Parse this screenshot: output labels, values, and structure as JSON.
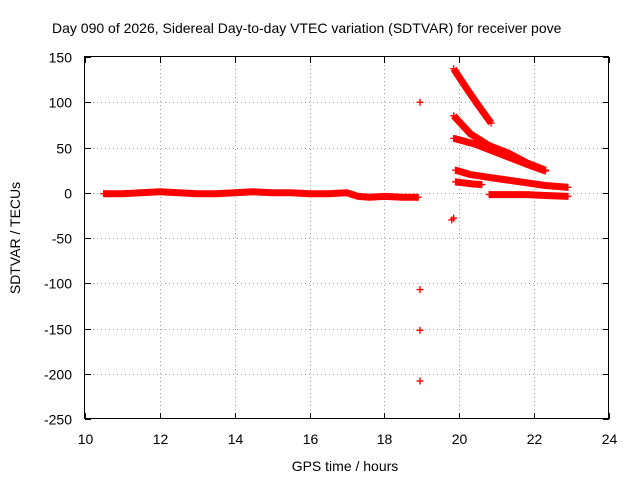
{
  "chart_data": {
    "type": "scatter",
    "title": "Day 090 of 2026, Sidereal Day-to-day VTEC variation (SDTVAR) for receiver pove",
    "xlabel": "GPS time / hours",
    "ylabel": "SDTVAR / TECUs",
    "xlim": [
      10,
      24
    ],
    "ylim": [
      -250,
      150
    ],
    "xticks": [
      10,
      12,
      14,
      16,
      18,
      20,
      22,
      24
    ],
    "yticks": [
      -250,
      -200,
      -150,
      -100,
      -50,
      0,
      50,
      100,
      150
    ],
    "grid": true,
    "legend": "none",
    "marker": "+",
    "color": "#ff0000",
    "series": [
      {
        "name": "baseline",
        "type": "band",
        "points": [
          [
            10.5,
            -1
          ],
          [
            11,
            -1
          ],
          [
            11.5,
            0
          ],
          [
            12,
            1
          ],
          [
            12.5,
            0
          ],
          [
            13,
            -1
          ],
          [
            13.5,
            -1
          ],
          [
            14,
            0
          ],
          [
            14.5,
            1
          ],
          [
            15,
            0
          ],
          [
            15.5,
            0
          ],
          [
            16,
            -1
          ],
          [
            16.5,
            -1
          ],
          [
            17,
            0
          ],
          [
            17.3,
            -4
          ],
          [
            17.6,
            -5
          ],
          [
            18,
            -4
          ],
          [
            18.5,
            -5
          ],
          [
            18.9,
            -5
          ]
        ]
      },
      {
        "name": "outliers",
        "type": "points",
        "points": [
          [
            18.95,
            100
          ],
          [
            18.95,
            -107
          ],
          [
            18.95,
            -152
          ],
          [
            18.95,
            -208
          ]
        ]
      },
      {
        "name": "low-point",
        "type": "points",
        "points": [
          [
            19.8,
            -30
          ],
          [
            19.85,
            -28
          ]
        ]
      },
      {
        "name": "arc-1",
        "type": "band",
        "points": [
          [
            19.85,
            137
          ],
          [
            20.2,
            115
          ],
          [
            20.5,
            97
          ],
          [
            20.85,
            77
          ]
        ]
      },
      {
        "name": "arc-2",
        "type": "band",
        "points": [
          [
            19.85,
            85
          ],
          [
            20.3,
            65
          ],
          [
            20.8,
            52
          ],
          [
            21.3,
            44
          ],
          [
            21.8,
            33
          ],
          [
            22.3,
            25
          ]
        ]
      },
      {
        "name": "arc-3",
        "type": "band",
        "points": [
          [
            19.85,
            60
          ],
          [
            20.4,
            54
          ],
          [
            20.9,
            46
          ],
          [
            21.4,
            38
          ],
          [
            21.9,
            30
          ],
          [
            22.3,
            24
          ]
        ]
      },
      {
        "name": "arc-4",
        "type": "band",
        "points": [
          [
            19.9,
            25
          ],
          [
            20.3,
            20
          ],
          [
            20.8,
            17
          ],
          [
            21.3,
            14
          ],
          [
            21.8,
            11
          ],
          [
            22.3,
            8
          ],
          [
            22.9,
            6
          ]
        ]
      },
      {
        "name": "arc-5",
        "type": "band",
        "points": [
          [
            19.9,
            12
          ],
          [
            20.3,
            10
          ],
          [
            20.6,
            9
          ]
        ]
      },
      {
        "name": "arc-6",
        "type": "band",
        "points": [
          [
            20.8,
            -2
          ],
          [
            21.3,
            -2
          ],
          [
            21.8,
            -2
          ],
          [
            22.3,
            -3
          ],
          [
            22.9,
            -4
          ]
        ]
      }
    ]
  }
}
